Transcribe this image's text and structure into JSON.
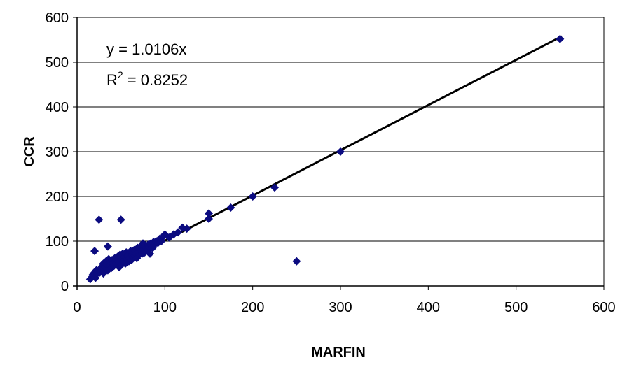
{
  "chart_data": {
    "type": "scatter",
    "xlabel": "MARFIN",
    "ylabel": "CCR",
    "xlim": [
      0,
      600
    ],
    "ylim": [
      0,
      600
    ],
    "xticks": [
      "0",
      "100",
      "200",
      "300",
      "400",
      "500",
      "600"
    ],
    "yticks": [
      "0",
      "100",
      "200",
      "300",
      "400",
      "500",
      "600"
    ],
    "grid": "horizontal",
    "colors": {
      "marker": "#0b0b80",
      "trendline": "#000000"
    },
    "trendline": {
      "slope": 1.0106,
      "equation": "y = 1.0106x",
      "r2_prefix": "R",
      "r2_sup": "2",
      "r2_value": " = 0.8252"
    },
    "points": [
      [
        15,
        15
      ],
      [
        17,
        20
      ],
      [
        18,
        25
      ],
      [
        19,
        22
      ],
      [
        20,
        30
      ],
      [
        20,
        78
      ],
      [
        21,
        18
      ],
      [
        22,
        35
      ],
      [
        23,
        28
      ],
      [
        24,
        32
      ],
      [
        25,
        148
      ],
      [
        26,
        30
      ],
      [
        27,
        40
      ],
      [
        28,
        35
      ],
      [
        29,
        45
      ],
      [
        30,
        28
      ],
      [
        30,
        50
      ],
      [
        31,
        38
      ],
      [
        32,
        42
      ],
      [
        33,
        55
      ],
      [
        34,
        48
      ],
      [
        35,
        88
      ],
      [
        35,
        35
      ],
      [
        36,
        60
      ],
      [
        37,
        45
      ],
      [
        38,
        52
      ],
      [
        39,
        40
      ],
      [
        40,
        58
      ],
      [
        41,
        50
      ],
      [
        42,
        45
      ],
      [
        43,
        62
      ],
      [
        44,
        55
      ],
      [
        45,
        50
      ],
      [
        46,
        65
      ],
      [
        47,
        55
      ],
      [
        48,
        42
      ],
      [
        49,
        70
      ],
      [
        50,
        148
      ],
      [
        50,
        60
      ],
      [
        51,
        48
      ],
      [
        52,
        72
      ],
      [
        53,
        55
      ],
      [
        54,
        65
      ],
      [
        55,
        50
      ],
      [
        56,
        75
      ],
      [
        57,
        60
      ],
      [
        58,
        68
      ],
      [
        59,
        55
      ],
      [
        60,
        62
      ],
      [
        61,
        78
      ],
      [
        62,
        58
      ],
      [
        63,
        70
      ],
      [
        64,
        65
      ],
      [
        65,
        80
      ],
      [
        66,
        68
      ],
      [
        67,
        72
      ],
      [
        68,
        62
      ],
      [
        69,
        85
      ],
      [
        70,
        75
      ],
      [
        71,
        70
      ],
      [
        72,
        88
      ],
      [
        73,
        78
      ],
      [
        74,
        72
      ],
      [
        75,
        95
      ],
      [
        76,
        82
      ],
      [
        77,
        75
      ],
      [
        78,
        90
      ],
      [
        79,
        85
      ],
      [
        80,
        80
      ],
      [
        81,
        92
      ],
      [
        82,
        88
      ],
      [
        83,
        72
      ],
      [
        84,
        95
      ],
      [
        85,
        90
      ],
      [
        86,
        85
      ],
      [
        87,
        98
      ],
      [
        88,
        92
      ],
      [
        89,
        95
      ],
      [
        90,
        100
      ],
      [
        92,
        96
      ],
      [
        94,
        105
      ],
      [
        96,
        100
      ],
      [
        98,
        110
      ],
      [
        100,
        115
      ],
      [
        105,
        108
      ],
      [
        110,
        115
      ],
      [
        115,
        120
      ],
      [
        120,
        130
      ],
      [
        125,
        128
      ],
      [
        150,
        150
      ],
      [
        150,
        162
      ],
      [
        175,
        175
      ],
      [
        200,
        200
      ],
      [
        225,
        220
      ],
      [
        250,
        55
      ],
      [
        300,
        300
      ],
      [
        550,
        552
      ]
    ]
  }
}
